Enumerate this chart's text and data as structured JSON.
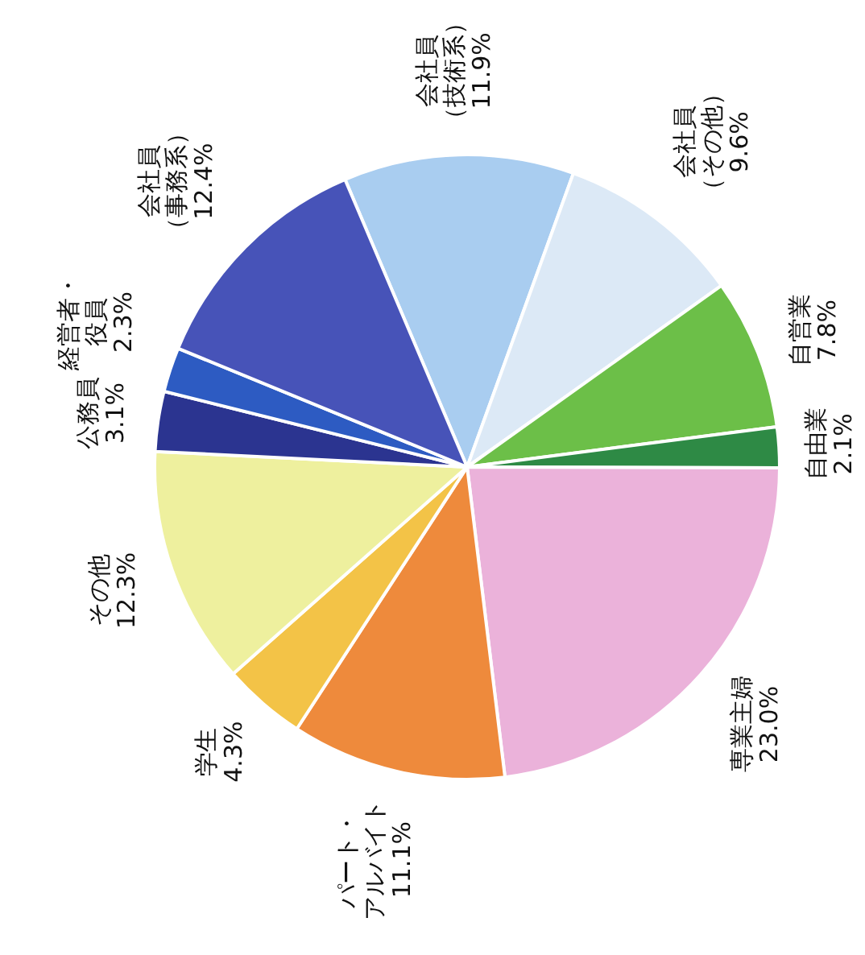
{
  "chart_data": {
    "type": "pie",
    "categories": [
      "会社員（技術系）",
      "会社員（その他）",
      "自営業",
      "自由業",
      "専業主婦",
      "パート・アルバイト",
      "学生",
      "その他",
      "公務員",
      "経営者・役員",
      "会社員（事務系）"
    ],
    "values": [
      11.9,
      9.6,
      7.8,
      2.1,
      23.0,
      11.1,
      4.3,
      12.3,
      3.1,
      2.3,
      12.4
    ],
    "colors": [
      "#a9cdf0",
      "#dce9f6",
      "#6cbf48",
      "#2e8a45",
      "#ebb2da",
      "#ee8a3c",
      "#f3c347",
      "#eef09e",
      "#2b3490",
      "#2d5bc2",
      "#4753b8"
    ],
    "value_labels": [
      "11.9%",
      "9.6%",
      "7.8%",
      "2.1%",
      "23.0%",
      "11.1%",
      "4.3%",
      "12.3%",
      "3.1%",
      "2.3%",
      "12.4%"
    ],
    "legend": false
  }
}
